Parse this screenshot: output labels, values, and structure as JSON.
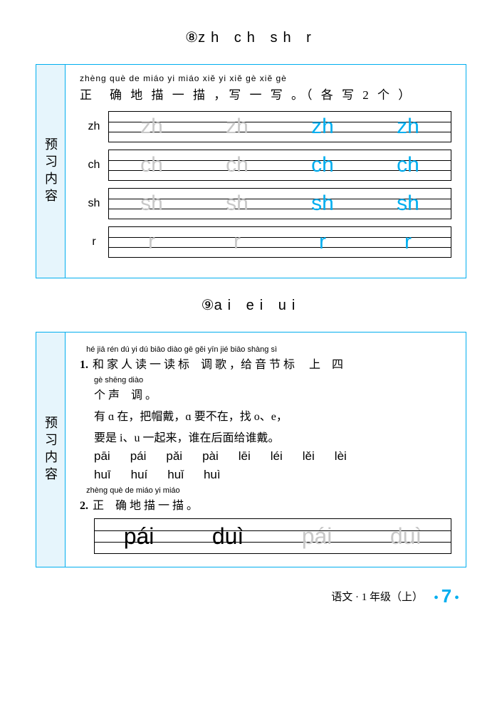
{
  "section1": {
    "number": "⑧",
    "title_letters": "zh  ch  sh  r",
    "side_label": "预习内容",
    "instruction_pinyin": "zhèng què de miáo yi miáo  xiě yi xiě      gè xiě    gè",
    "instruction_hanzi": "正　确 地 描 一 描 ，写 一 写 。（ 各 写 2 个 ）",
    "rows": [
      {
        "label": "zh",
        "cells": [
          {
            "t": "zh",
            "c": "gray"
          },
          {
            "t": "zh",
            "c": "gray"
          },
          {
            "t": "zh",
            "c": "blue"
          },
          {
            "t": "zh",
            "c": "blue"
          }
        ]
      },
      {
        "label": "ch",
        "cells": [
          {
            "t": "ch",
            "c": "gray"
          },
          {
            "t": "ch",
            "c": "gray"
          },
          {
            "t": "ch",
            "c": "blue"
          },
          {
            "t": "ch",
            "c": "blue"
          }
        ]
      },
      {
        "label": "sh",
        "cells": [
          {
            "t": "sh",
            "c": "gray"
          },
          {
            "t": "sh",
            "c": "gray"
          },
          {
            "t": "sh",
            "c": "blue"
          },
          {
            "t": "sh",
            "c": "blue"
          }
        ]
      },
      {
        "label": "r",
        "cells": [
          {
            "t": "r",
            "c": "gray"
          },
          {
            "t": "r",
            "c": "gray"
          },
          {
            "t": "r",
            "c": "blue"
          },
          {
            "t": "r",
            "c": "blue"
          }
        ]
      }
    ]
  },
  "section2": {
    "number": "⑨",
    "title_letters": "ai  ei  ui",
    "side_label": "预习内容",
    "q1": {
      "num": "1.",
      "pinyin1": "hé jiā rén dú yi dú biāo diào gē   gěi yīn jié biāo shàng sì",
      "hanzi1": "和 家 人 读 一 读 标　调 歌 ，给 音 节 标　 上　四",
      "pinyin2": "gè shēng diào",
      "hanzi2": "个 声　调 。",
      "line3": "有 ɑ 在，把帽戴，ɑ 要不在，找 o、e，",
      "line4": "要是 i、u 一起来，谁在后面给谁戴。",
      "row1": [
        "pāi",
        "pái",
        "pǎi",
        "pài",
        "lēi",
        "léi",
        "lěi",
        "lèi"
      ],
      "row2": [
        "huī",
        "huí",
        "huǐ",
        "huì"
      ]
    },
    "q2": {
      "num": "2.",
      "pinyin": "zhèng què de miáo yi miáo",
      "hanzi": "正　确 地 描 一 描 。",
      "cells": [
        {
          "t": "pái",
          "c": "black"
        },
        {
          "t": "duì",
          "c": "black"
        },
        {
          "t": "pái",
          "c": "gray"
        },
        {
          "t": "duì",
          "c": "gray"
        }
      ]
    }
  },
  "footer": {
    "text": "语文 · 1 年级（上）",
    "page": "7"
  },
  "colors": {
    "accent": "#00aeef",
    "side_bg": "#e6f5fc",
    "gray": "#c8c8c8"
  }
}
